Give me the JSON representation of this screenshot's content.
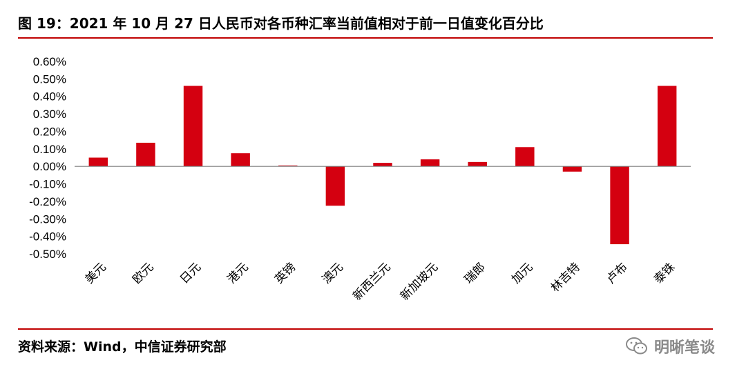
{
  "figure": {
    "title": "图 19：2021 年 10 月 27 日人民币对各币种汇率当前值相对于前一日值变化百分比",
    "source": "资料来源：Wind，中信证券研究部"
  },
  "watermark": {
    "text": "明晰笔谈",
    "icon": "wechat-icon"
  },
  "colors": {
    "bar": "#d40010",
    "rule": "#c00000",
    "axis": "#7f7f7f"
  },
  "chart_data": {
    "type": "bar",
    "title": "",
    "xlabel": "",
    "ylabel": "",
    "categories": [
      "美元",
      "欧元",
      "日元",
      "港元",
      "英镑",
      "澳元",
      "新西兰元",
      "新加坡元",
      "瑞郎",
      "加元",
      "林吉特",
      "卢布",
      "泰铢"
    ],
    "values": [
      0.05,
      0.135,
      0.46,
      0.075,
      0.005,
      -0.225,
      0.02,
      0.04,
      0.025,
      0.11,
      -0.03,
      -0.445,
      0.46
    ],
    "unit": "%",
    "ylim": [
      -0.5,
      0.6
    ],
    "yticks": [
      "0.60%",
      "0.50%",
      "0.40%",
      "0.30%",
      "0.20%",
      "0.10%",
      "0.00%",
      "-0.10%",
      "-0.20%",
      "-0.30%",
      "-0.40%",
      "-0.50%"
    ],
    "ytick_values": [
      0.6,
      0.5,
      0.4,
      0.3,
      0.2,
      0.1,
      0.0,
      -0.1,
      -0.2,
      -0.3,
      -0.4,
      -0.5
    ],
    "grid": false,
    "legend": "none",
    "category_labels_rotated": true
  }
}
